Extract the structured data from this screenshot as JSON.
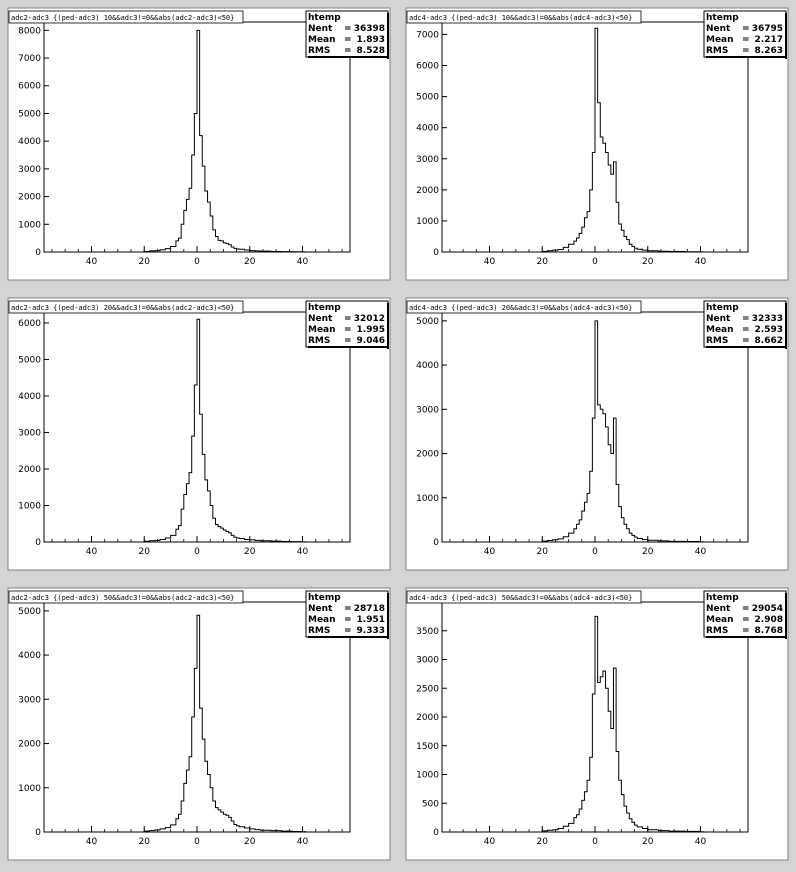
{
  "chart_data": [
    {
      "type": "histogram",
      "title": "adc2-adc3 {(ped-adc3) 10&&adc3!=0&&abs(adc2-adc3)<50}",
      "stats": {
        "header": "htemp",
        "entries_label": "Nent",
        "entries": "36398",
        "mean_label": "Mean",
        "mean": "1.893",
        "rms_label": "RMS",
        "rms": "8.528"
      },
      "x_tick_labels": [
        "40",
        "20",
        "0",
        "20",
        "40"
      ],
      "x_ticks": [
        -40,
        -20,
        0,
        20,
        40
      ],
      "xlim": [
        -58,
        58
      ],
      "ylim": [
        0,
        8300
      ],
      "y_ticks": [
        0,
        1000,
        2000,
        3000,
        4000,
        5000,
        6000,
        7000,
        8000
      ],
      "y_tick_labels": [
        "0",
        "1000",
        "2000",
        "3000",
        "4000",
        "5000",
        "6000",
        "7000",
        "8000"
      ],
      "bins": [
        [
          -20,
          20
        ],
        [
          -18,
          40
        ],
        [
          -16,
          50
        ],
        [
          -14,
          80
        ],
        [
          -12,
          120
        ],
        [
          -10,
          200
        ],
        [
          -8,
          400
        ],
        [
          -7,
          500
        ],
        [
          -6,
          1000
        ],
        [
          -5,
          1500
        ],
        [
          -4,
          1900
        ],
        [
          -3,
          2300
        ],
        [
          -2,
          3500
        ],
        [
          -1,
          5000
        ],
        [
          0,
          8000
        ],
        [
          1,
          4200
        ],
        [
          2,
          3100
        ],
        [
          3,
          2200
        ],
        [
          4,
          1800
        ],
        [
          5,
          1300
        ],
        [
          6,
          800
        ],
        [
          7,
          560
        ],
        [
          8,
          420
        ],
        [
          9,
          400
        ],
        [
          10,
          330
        ],
        [
          11,
          300
        ],
        [
          12,
          260
        ],
        [
          13,
          180
        ],
        [
          14,
          130
        ],
        [
          15,
          110
        ],
        [
          16,
          100
        ],
        [
          18,
          70
        ],
        [
          20,
          50
        ],
        [
          22,
          40
        ],
        [
          24,
          30
        ],
        [
          28,
          20
        ],
        [
          32,
          15
        ],
        [
          36,
          10
        ],
        [
          40,
          6
        ]
      ]
    },
    {
      "type": "histogram",
      "title": "adc4-adc3 {(ped-adc3) 10&&adc3!=0&&abs(adc4-adc3)<50}",
      "stats": {
        "header": "htemp",
        "entries_label": "Nent",
        "entries": "36795",
        "mean_label": "Mean",
        "mean": "2.217",
        "rms_label": "RMS",
        "rms": "8.263"
      },
      "x_tick_labels": [
        "40",
        "20",
        "0",
        "20",
        "40"
      ],
      "x_ticks": [
        -40,
        -20,
        0,
        20,
        40
      ],
      "xlim": [
        -58,
        58
      ],
      "ylim": [
        0,
        7400
      ],
      "y_ticks": [
        0,
        1000,
        2000,
        3000,
        4000,
        5000,
        6000,
        7000
      ],
      "y_tick_labels": [
        "0",
        "1000",
        "2000",
        "3000",
        "4000",
        "5000",
        "6000",
        "7000"
      ],
      "bins": [
        [
          -20,
          20
        ],
        [
          -18,
          40
        ],
        [
          -16,
          60
        ],
        [
          -14,
          80
        ],
        [
          -12,
          150
        ],
        [
          -10,
          250
        ],
        [
          -8,
          350
        ],
        [
          -7,
          450
        ],
        [
          -6,
          600
        ],
        [
          -5,
          800
        ],
        [
          -4,
          1100
        ],
        [
          -3,
          1300
        ],
        [
          -2,
          2000
        ],
        [
          -1,
          3200
        ],
        [
          0,
          7200
        ],
        [
          1,
          4800
        ],
        [
          2,
          3700
        ],
        [
          3,
          3500
        ],
        [
          4,
          3200
        ],
        [
          5,
          2800
        ],
        [
          6,
          2500
        ],
        [
          7,
          2900
        ],
        [
          8,
          1600
        ],
        [
          9,
          900
        ],
        [
          10,
          700
        ],
        [
          11,
          500
        ],
        [
          12,
          400
        ],
        [
          13,
          250
        ],
        [
          14,
          180
        ],
        [
          15,
          120
        ],
        [
          16,
          90
        ],
        [
          18,
          60
        ],
        [
          20,
          40
        ],
        [
          24,
          25
        ],
        [
          28,
          15
        ],
        [
          34,
          10
        ],
        [
          40,
          5
        ]
      ]
    },
    {
      "type": "histogram",
      "title": "adc2-adc3 {(ped-adc3) 20&&adc3!=0&&abs(adc2-adc3)<50}",
      "stats": {
        "header": "htemp",
        "entries_label": "Nent",
        "entries": "32012",
        "mean_label": "Mean",
        "mean": "1.995",
        "rms_label": "RMS",
        "rms": "9.046"
      },
      "x_tick_labels": [
        "40",
        "20",
        "0",
        "20",
        "40"
      ],
      "x_ticks": [
        -40,
        -20,
        0,
        20,
        40
      ],
      "xlim": [
        -58,
        58
      ],
      "ylim": [
        0,
        6300
      ],
      "y_ticks": [
        0,
        1000,
        2000,
        3000,
        4000,
        5000,
        6000
      ],
      "y_tick_labels": [
        "0",
        "1000",
        "2000",
        "3000",
        "4000",
        "5000",
        "6000"
      ],
      "bins": [
        [
          -20,
          20
        ],
        [
          -18,
          35
        ],
        [
          -16,
          45
        ],
        [
          -14,
          70
        ],
        [
          -12,
          110
        ],
        [
          -10,
          180
        ],
        [
          -8,
          350
        ],
        [
          -7,
          450
        ],
        [
          -6,
          900
        ],
        [
          -5,
          1300
        ],
        [
          -4,
          1600
        ],
        [
          -3,
          1900
        ],
        [
          -2,
          2900
        ],
        [
          -1,
          4300
        ],
        [
          0,
          6100
        ],
        [
          1,
          3500
        ],
        [
          2,
          2400
        ],
        [
          3,
          1700
        ],
        [
          4,
          1400
        ],
        [
          5,
          1000
        ],
        [
          6,
          650
        ],
        [
          7,
          480
        ],
        [
          8,
          420
        ],
        [
          9,
          380
        ],
        [
          10,
          330
        ],
        [
          11,
          290
        ],
        [
          12,
          250
        ],
        [
          13,
          180
        ],
        [
          14,
          130
        ],
        [
          15,
          110
        ],
        [
          16,
          95
        ],
        [
          18,
          70
        ],
        [
          20,
          60
        ],
        [
          22,
          45
        ],
        [
          24,
          35
        ],
        [
          28,
          25
        ],
        [
          32,
          15
        ],
        [
          36,
          10
        ],
        [
          40,
          6
        ]
      ]
    },
    {
      "type": "histogram",
      "title": "adc4-adc3 {(ped-adc3) 20&&adc3!=0&&abs(adc4-adc3)<50}",
      "stats": {
        "header": "htemp",
        "entries_label": "Nent",
        "entries": "32333",
        "mean_label": "Mean",
        "mean": "2.593",
        "rms_label": "RMS",
        "rms": "8.662"
      },
      "x_tick_labels": [
        "40",
        "20",
        "0",
        "20",
        "40"
      ],
      "x_ticks": [
        -40,
        -20,
        0,
        20,
        40
      ],
      "xlim": [
        -58,
        58
      ],
      "ylim": [
        0,
        5200
      ],
      "y_ticks": [
        0,
        1000,
        2000,
        3000,
        4000,
        5000
      ],
      "y_tick_labels": [
        "0",
        "1000",
        "2000",
        "3000",
        "4000",
        "5000"
      ],
      "bins": [
        [
          -20,
          20
        ],
        [
          -18,
          35
        ],
        [
          -16,
          50
        ],
        [
          -14,
          70
        ],
        [
          -12,
          120
        ],
        [
          -10,
          200
        ],
        [
          -8,
          300
        ],
        [
          -7,
          400
        ],
        [
          -6,
          500
        ],
        [
          -5,
          700
        ],
        [
          -4,
          900
        ],
        [
          -3,
          1100
        ],
        [
          -2,
          1600
        ],
        [
          -1,
          2800
        ],
        [
          0,
          5000
        ],
        [
          1,
          3100
        ],
        [
          2,
          3000
        ],
        [
          3,
          2900
        ],
        [
          4,
          2600
        ],
        [
          5,
          2200
        ],
        [
          6,
          2000
        ],
        [
          7,
          2800
        ],
        [
          8,
          1300
        ],
        [
          9,
          800
        ],
        [
          10,
          550
        ],
        [
          11,
          400
        ],
        [
          12,
          300
        ],
        [
          13,
          200
        ],
        [
          14,
          150
        ],
        [
          15,
          110
        ],
        [
          16,
          80
        ],
        [
          18,
          55
        ],
        [
          20,
          40
        ],
        [
          24,
          25
        ],
        [
          28,
          15
        ],
        [
          34,
          10
        ],
        [
          40,
          5
        ]
      ]
    },
    {
      "type": "histogram",
      "title": "adc2-adc3 {(ped-adc3) 50&&adc3!=0&&abs(adc2-adc3)<50}",
      "stats": {
        "header": "htemp",
        "entries_label": "Nent",
        "entries": "28718",
        "mean_label": "Mean",
        "mean": "1.951",
        "rms_label": "RMS",
        "rms": "9.333"
      },
      "x_tick_labels": [
        "40",
        "20",
        "0",
        "20",
        "40"
      ],
      "x_ticks": [
        -40,
        -20,
        0,
        20,
        40
      ],
      "xlim": [
        -58,
        58
      ],
      "ylim": [
        0,
        5200
      ],
      "y_ticks": [
        0,
        1000,
        2000,
        3000,
        4000,
        5000
      ],
      "y_tick_labels": [
        "0",
        "1000",
        "2000",
        "3000",
        "4000",
        "5000"
      ],
      "bins": [
        [
          -20,
          20
        ],
        [
          -18,
          30
        ],
        [
          -16,
          45
        ],
        [
          -14,
          70
        ],
        [
          -12,
          100
        ],
        [
          -10,
          160
        ],
        [
          -8,
          300
        ],
        [
          -7,
          400
        ],
        [
          -6,
          700
        ],
        [
          -5,
          1100
        ],
        [
          -4,
          1400
        ],
        [
          -3,
          1700
        ],
        [
          -2,
          2600
        ],
        [
          -1,
          3700
        ],
        [
          0,
          4900
        ],
        [
          1,
          2800
        ],
        [
          2,
          2100
        ],
        [
          3,
          1600
        ],
        [
          4,
          1300
        ],
        [
          5,
          1000
        ],
        [
          6,
          700
        ],
        [
          7,
          550
        ],
        [
          8,
          500
        ],
        [
          9,
          450
        ],
        [
          10,
          400
        ],
        [
          11,
          380
        ],
        [
          12,
          330
        ],
        [
          13,
          250
        ],
        [
          14,
          170
        ],
        [
          15,
          140
        ],
        [
          16,
          120
        ],
        [
          18,
          90
        ],
        [
          20,
          70
        ],
        [
          22,
          55
        ],
        [
          24,
          40
        ],
        [
          28,
          30
        ],
        [
          32,
          20
        ],
        [
          36,
          12
        ],
        [
          40,
          8
        ]
      ]
    },
    {
      "type": "histogram",
      "title": "adc4-adc3 {(ped-adc3) 50&&adc3!=0&&abs(adc4-adc3)<50}",
      "stats": {
        "header": "htemp",
        "entries_label": "Nent",
        "entries": "29054",
        "mean_label": "Mean",
        "mean": "2.908",
        "rms_label": "RMS",
        "rms": "8.768"
      },
      "x_tick_labels": [
        "40",
        "20",
        "0",
        "20",
        "40"
      ],
      "x_ticks": [
        -40,
        -20,
        0,
        20,
        40
      ],
      "xlim": [
        -58,
        58
      ],
      "ylim": [
        0,
        4000
      ],
      "y_ticks": [
        0,
        500,
        1000,
        1500,
        2000,
        2500,
        3000,
        3500
      ],
      "y_tick_labels": [
        "0",
        "500",
        "1000",
        "1500",
        "2000",
        "2500",
        "3000",
        "3500"
      ],
      "bins": [
        [
          -20,
          20
        ],
        [
          -18,
          30
        ],
        [
          -16,
          40
        ],
        [
          -14,
          60
        ],
        [
          -12,
          100
        ],
        [
          -10,
          150
        ],
        [
          -8,
          250
        ],
        [
          -7,
          300
        ],
        [
          -6,
          400
        ],
        [
          -5,
          550
        ],
        [
          -4,
          700
        ],
        [
          -3,
          900
        ],
        [
          -2,
          1300
        ],
        [
          -1,
          2400
        ],
        [
          0,
          3750
        ],
        [
          1,
          2600
        ],
        [
          2,
          2700
        ],
        [
          3,
          2800
        ],
        [
          4,
          2500
        ],
        [
          5,
          2100
        ],
        [
          6,
          1800
        ],
        [
          7,
          2850
        ],
        [
          8,
          1400
        ],
        [
          9,
          900
        ],
        [
          10,
          650
        ],
        [
          11,
          450
        ],
        [
          12,
          330
        ],
        [
          13,
          230
        ],
        [
          14,
          170
        ],
        [
          15,
          120
        ],
        [
          16,
          90
        ],
        [
          18,
          60
        ],
        [
          20,
          40
        ],
        [
          24,
          25
        ],
        [
          28,
          15
        ],
        [
          34,
          10
        ],
        [
          40,
          5
        ]
      ]
    }
  ]
}
